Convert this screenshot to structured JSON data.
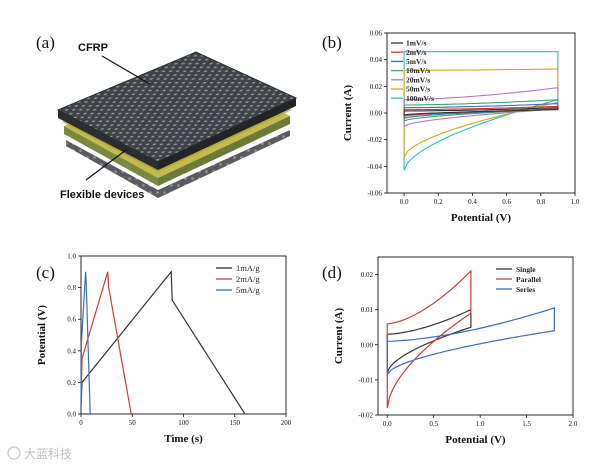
{
  "figure": {
    "watermark": "大蓝科技",
    "panel_a": {
      "label": "(a)",
      "callout_top": "CFRP",
      "callout_bottom": "Flexible devices"
    }
  },
  "chart_data": [
    {
      "panel": "(b)",
      "type": "line",
      "title": "",
      "xlabel": "Potential (V)",
      "ylabel": "Current (A)",
      "xlim": [
        -0.1,
        1.0
      ],
      "ylim": [
        -0.06,
        0.06
      ],
      "xticks": [
        "0.0",
        "0.2",
        "0.4",
        "0.6",
        "0.8",
        "1.0"
      ],
      "yticks": [
        "-0.06",
        "-0.04",
        "-0.02",
        "0.00",
        "0.02",
        "0.04",
        "0.06"
      ],
      "legend_position": "top-left",
      "series": [
        {
          "name": "1mV/s",
          "color": "#333333",
          "x_range": [
            0,
            0.9
          ],
          "upper": [
            0.0015,
            0.004
          ],
          "lower": [
            -0.0015,
            0.0025
          ]
        },
        {
          "name": "2mV/s",
          "color": "#cc3b3b",
          "x_range": [
            0,
            0.9
          ],
          "upper": [
            0.0025,
            0.005
          ],
          "lower": [
            -0.0025,
            0.003
          ]
        },
        {
          "name": "5mV/s",
          "color": "#3a6fb4",
          "x_range": [
            0,
            0.9
          ],
          "upper": [
            0.004,
            0.007
          ],
          "lower": [
            -0.004,
            0.003
          ]
        },
        {
          "name": "10mV/s",
          "color": "#3aa66a",
          "x_range": [
            0,
            0.9
          ],
          "upper": [
            0.006,
            0.01
          ],
          "lower": [
            -0.006,
            0.003
          ]
        },
        {
          "name": "20mV/s",
          "color": "#b07ac9",
          "x_range": [
            0,
            0.9
          ],
          "upper": [
            0.01,
            0.019
          ],
          "lower": [
            -0.01,
            0.003
          ]
        },
        {
          "name": "50mV/s",
          "color": "#d0a81e",
          "x_range": [
            0,
            0.9
          ],
          "upper": [
            0.032,
            0.033
          ],
          "lower": [
            -0.033,
            0.008
          ]
        },
        {
          "name": "100mV/s",
          "color": "#29c0c0",
          "x_range": [
            0,
            0.9
          ],
          "upper": [
            0.046,
            0.046
          ],
          "lower": [
            -0.043,
            0.01
          ]
        }
      ]
    },
    {
      "panel": "(c)",
      "type": "line",
      "title": "",
      "xlabel": "Time (s)",
      "ylabel": "Potential (V)",
      "xlim": [
        0,
        200
      ],
      "ylim": [
        0,
        1.0
      ],
      "xticks": [
        "0",
        "50",
        "100",
        "150",
        "200"
      ],
      "yticks": [
        "0.0",
        "0.2",
        "0.4",
        "0.6",
        "0.8",
        "1.0"
      ],
      "legend_position": "top-right",
      "series": [
        {
          "name": "1mA/g",
          "color": "#333333",
          "x": [
            0,
            1,
            88,
            89,
            160
          ],
          "y": [
            0.05,
            0.2,
            0.9,
            0.72,
            0.0
          ]
        },
        {
          "name": "2mA/g",
          "color": "#cc3b3b",
          "x": [
            0,
            1,
            26,
            27,
            49
          ],
          "y": [
            0.05,
            0.35,
            0.9,
            0.8,
            0.0
          ]
        },
        {
          "name": "5mA/g",
          "color": "#3a6fb4",
          "x": [
            0,
            0.4,
            4.5,
            5,
            9
          ],
          "y": [
            0.05,
            0.45,
            0.9,
            0.85,
            0.0
          ]
        }
      ]
    },
    {
      "panel": "(d)",
      "type": "line",
      "title": "",
      "xlabel": "Potential (V)",
      "ylabel": "Current (A)",
      "xlim": [
        -0.1,
        2.0
      ],
      "ylim": [
        -0.02,
        0.025
      ],
      "xticks": [
        "0.0",
        "0.5",
        "1.0",
        "1.5",
        "2.0"
      ],
      "yticks": [
        "-0.02",
        "-0.01",
        "0.00",
        "0.01",
        "0.02"
      ],
      "legend_position": "top-right",
      "series": [
        {
          "name": "Single",
          "color": "#333333",
          "x_range": [
            0,
            0.9
          ],
          "upper": [
            0.003,
            0.01
          ],
          "lower": [
            -0.008,
            0.005
          ]
        },
        {
          "name": "Parallel",
          "color": "#cc3b3b",
          "x_range": [
            0,
            0.9
          ],
          "upper": [
            0.006,
            0.021
          ],
          "lower": [
            -0.018,
            0.009
          ]
        },
        {
          "name": "Series",
          "color": "#3a6fb4",
          "x_range": [
            0,
            1.8
          ],
          "upper": [
            0.001,
            0.0105
          ],
          "lower": [
            -0.0085,
            0.004
          ]
        }
      ]
    }
  ]
}
